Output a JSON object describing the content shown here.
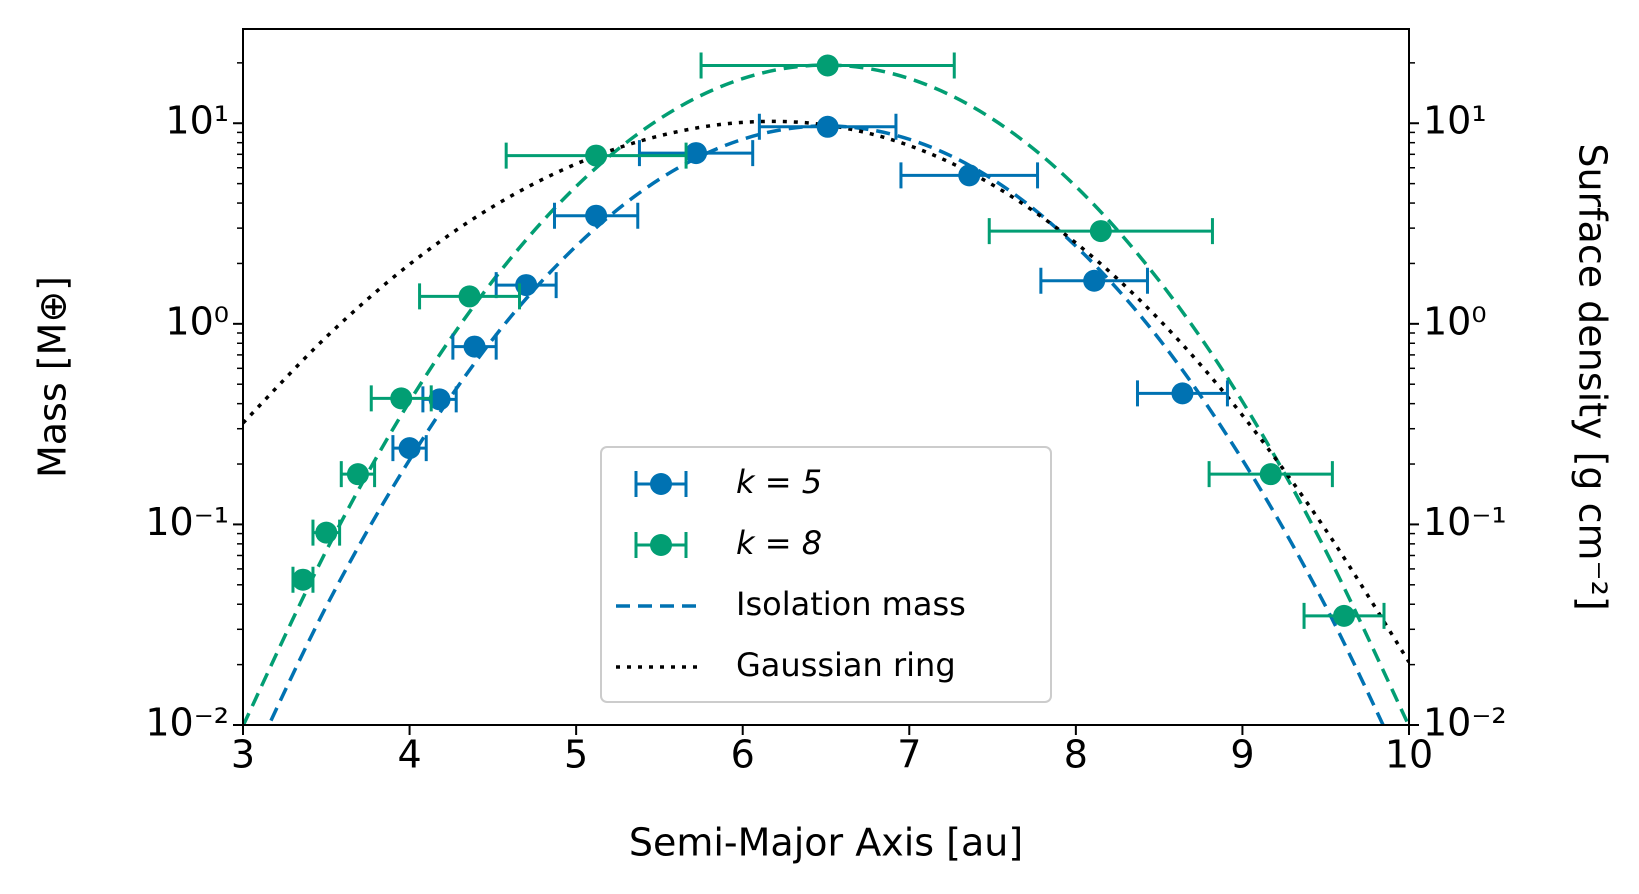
{
  "chart_data": {
    "type": "errorbar",
    "xlabel": "Semi-Major Axis [au]",
    "ylabel": "Mass [M⊕]",
    "y2label": "Surface density [g cm⁻²]",
    "xlim": [
      3,
      10
    ],
    "xticks": [
      3,
      4,
      5,
      6,
      7,
      8,
      9,
      10
    ],
    "ylim": [
      0.01,
      29.5
    ],
    "log_y": true,
    "yticks": [
      {
        "value": 0.01,
        "label": "10⁻²"
      },
      {
        "value": 0.1,
        "label": "10⁻¹"
      },
      {
        "value": 1,
        "label": "10⁰"
      },
      {
        "value": 10,
        "label": "10¹"
      }
    ],
    "y_minor_ticks": [
      0.02,
      0.03,
      0.04,
      0.05,
      0.06,
      0.07,
      0.08,
      0.09,
      0.2,
      0.3,
      0.4,
      0.5,
      0.6,
      0.7,
      0.8,
      0.9,
      2,
      3,
      4,
      5,
      6,
      7,
      8,
      9,
      20
    ],
    "y2lim": [
      0.01,
      29.5
    ],
    "y2ticks": [
      {
        "value": 0.01,
        "label": "10⁻²"
      },
      {
        "value": 0.1,
        "label": "10⁻¹"
      },
      {
        "value": 1,
        "label": "10⁰"
      },
      {
        "value": 10,
        "label": "10¹"
      }
    ],
    "legend": "lower center",
    "series": [
      {
        "name": "k = 5",
        "color": "#0072b2",
        "x": [
          4.0,
          4.18,
          4.39,
          4.7,
          5.12,
          5.72,
          6.51,
          7.36,
          8.11,
          8.64
        ],
        "values": [
          0.24,
          0.42,
          0.77,
          1.56,
          3.46,
          7.1,
          9.6,
          5.5,
          1.64,
          0.45
        ],
        "xerr": [
          0.1,
          0.1,
          0.13,
          0.18,
          0.25,
          0.34,
          0.41,
          0.41,
          0.32,
          0.27
        ]
      },
      {
        "name": "k = 8",
        "color": "#029e73",
        "x": [
          3.36,
          3.5,
          3.69,
          3.95,
          4.36,
          5.12,
          6.51,
          8.15,
          9.17,
          9.61
        ],
        "values": [
          0.053,
          0.091,
          0.178,
          0.425,
          1.37,
          6.9,
          19.4,
          2.9,
          0.178,
          0.035
        ],
        "xerr": [
          0.06,
          0.08,
          0.1,
          0.18,
          0.3,
          0.54,
          0.76,
          0.67,
          0.37,
          0.24
        ]
      }
    ],
    "lines": [
      {
        "name": "Isolation mass",
        "color": "#0072b2",
        "style": "dashed",
        "x": [
          3,
          3.5,
          4,
          4.5,
          5,
          5.5,
          6,
          6.5,
          7,
          7.5,
          8,
          8.5,
          9,
          9.5,
          10
        ],
        "values": [
          0.0053,
          0.039,
          0.21,
          0.84,
          2.44,
          5.26,
          8.32,
          9.7,
          8.32,
          5.26,
          2.44,
          0.84,
          0.21,
          0.039,
          0.0053
        ]
      },
      {
        "color": "#029e73",
        "style": "dashed",
        "x": [
          3,
          3.5,
          4,
          4.5,
          5,
          5.5,
          6,
          6.5,
          7,
          7.5,
          8,
          8.5,
          9,
          9.5,
          10
        ],
        "values": [
          0.0099,
          0.074,
          0.41,
          1.64,
          4.84,
          10.5,
          16.7,
          19.5,
          16.7,
          10.5,
          4.84,
          1.64,
          0.41,
          0.074,
          0.0099
        ]
      },
      {
        "name": "Gaussian ring",
        "color": "#000000",
        "style": "dotted",
        "x": [
          3,
          3.5,
          4,
          4.5,
          5,
          5.5,
          6,
          6.5,
          7,
          7.5,
          8,
          8.5,
          9,
          9.5,
          10
        ],
        "values": [
          0.32,
          0.86,
          1.98,
          3.84,
          6.27,
          8.65,
          10.1,
          9.8,
          7.74,
          4.93,
          2.53,
          1.05,
          0.35,
          0.094,
          0.0206
        ]
      }
    ]
  }
}
